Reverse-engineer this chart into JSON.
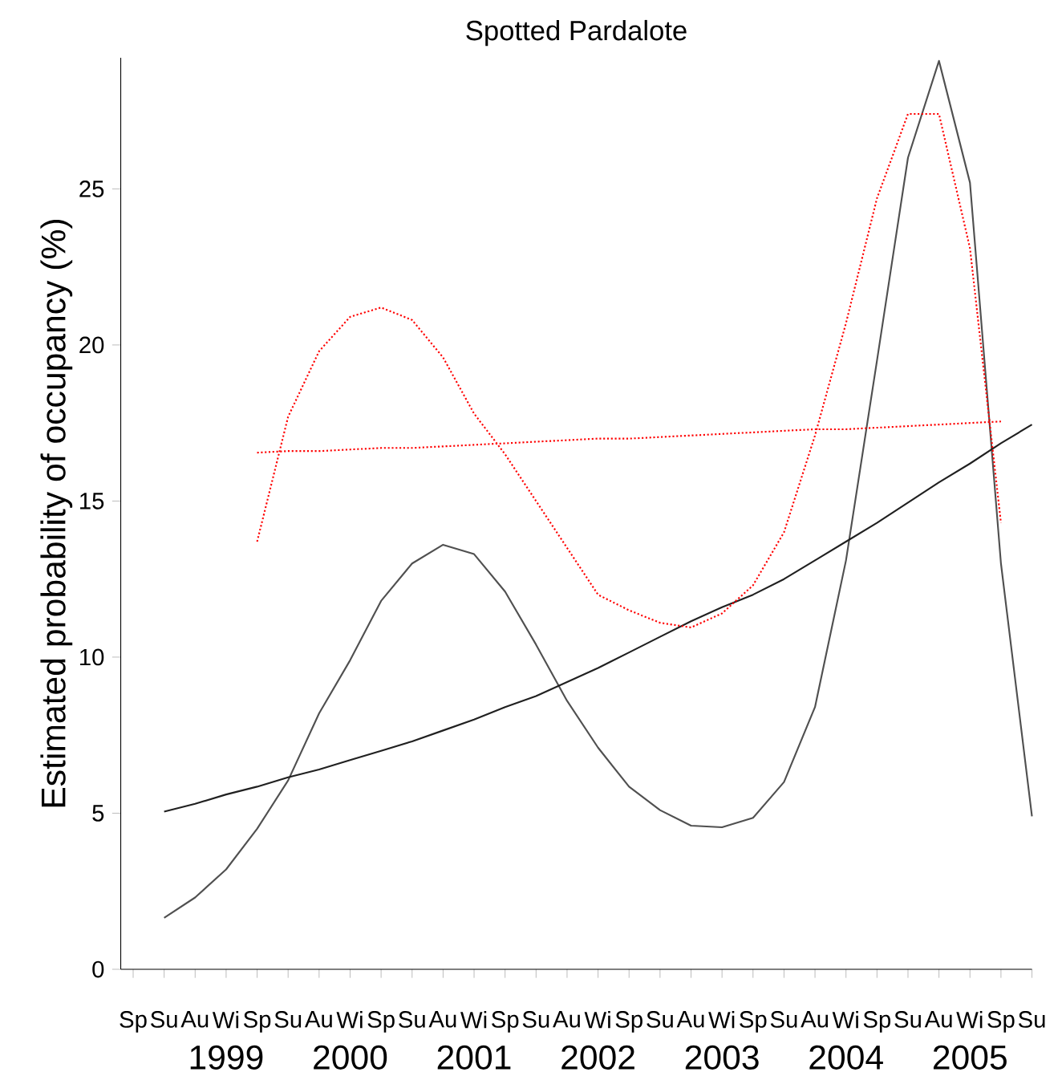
{
  "chart_data": {
    "type": "line",
    "title": "Spotted Pardalote",
    "ylabel": "Estimated probability of occupancy (%)",
    "categories": [
      "Sp",
      "Su",
      "Au",
      "Wi",
      "Sp",
      "Su",
      "Au",
      "Wi",
      "Sp",
      "Su",
      "Au",
      "Wi",
      "Sp",
      "Su",
      "Au",
      "Wi",
      "Sp",
      "Su",
      "Au",
      "Wi",
      "Sp",
      "Su",
      "Au",
      "Wi",
      "Sp",
      "Su",
      "Au",
      "Wi",
      "Sp",
      "Su"
    ],
    "ylim": [
      0,
      29.2
    ],
    "yticks": [
      0,
      5,
      10,
      15,
      20,
      25
    ],
    "annotations": [
      "1999",
      "2000",
      "2001",
      "2002",
      "2003",
      "2004",
      "2005"
    ],
    "grid": false,
    "marker": "none",
    "series": [
      {
        "color": "#505050",
        "line_style": "solid",
        "values": [
          null,
          1.65,
          2.3,
          3.2,
          4.5,
          6.05,
          8.2,
          9.9,
          11.8,
          13.0,
          13.6,
          13.3,
          12.1,
          10.4,
          8.6,
          7.1,
          5.85,
          5.1,
          4.6,
          4.55,
          4.85,
          6.0,
          8.4,
          13.1,
          19.5,
          26.0,
          29.1,
          25.2,
          13.0,
          4.9
        ]
      },
      {
        "color": "#202020",
        "line_style": "solid",
        "values": [
          null,
          5.05,
          5.3,
          5.6,
          5.85,
          6.15,
          6.4,
          6.7,
          7.0,
          7.3,
          7.65,
          8.0,
          8.4,
          8.75,
          9.2,
          9.65,
          10.15,
          10.65,
          11.15,
          11.6,
          12.0,
          12.5,
          13.1,
          13.7,
          14.3,
          14.95,
          15.6,
          16.2,
          16.85,
          17.45
        ]
      },
      {
        "color": "#ff0000",
        "line_style": "dotted",
        "values": [
          null,
          null,
          null,
          null,
          13.7,
          17.7,
          19.8,
          20.9,
          21.2,
          20.8,
          19.6,
          17.8,
          16.5,
          15.0,
          13.5,
          12.0,
          11.5,
          11.1,
          10.95,
          11.4,
          12.3,
          14.0,
          17.1,
          20.7,
          24.7,
          27.4,
          27.4,
          23.1,
          14.3,
          null
        ]
      },
      {
        "color": "#ff0000",
        "line_style": "dotted",
        "values": [
          null,
          null,
          null,
          null,
          16.55,
          16.6,
          16.6,
          16.65,
          16.7,
          16.7,
          16.75,
          16.8,
          16.85,
          16.9,
          16.95,
          17.0,
          17.0,
          17.05,
          17.1,
          17.15,
          17.2,
          17.25,
          17.3,
          17.3,
          17.35,
          17.4,
          17.45,
          17.5,
          17.55,
          null
        ]
      }
    ]
  }
}
